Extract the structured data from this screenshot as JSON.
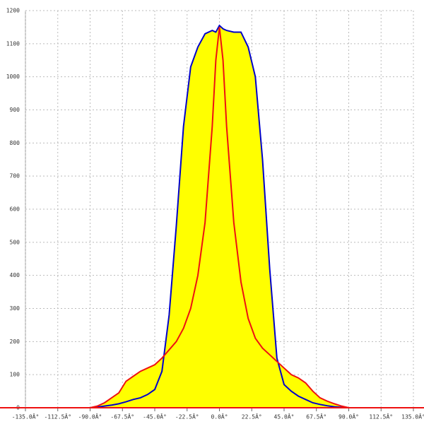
{
  "chart_data": {
    "type": "area-line",
    "x": [
      -90,
      -85,
      -80,
      -75,
      -70,
      -65,
      -60,
      -55,
      -50,
      -45,
      -40,
      -35,
      -30,
      -25,
      -20,
      -15,
      -10,
      -5,
      -2.5,
      0,
      2.5,
      5,
      10,
      15,
      20,
      25,
      30,
      35,
      40,
      45,
      50,
      55,
      60,
      65,
      70,
      75,
      80,
      85,
      90
    ],
    "series": [
      {
        "color": "#0000cc",
        "fill": "#ffff00",
        "values": [
          0,
          2,
          5,
          8,
          12,
          18,
          25,
          30,
          40,
          55,
          110,
          280,
          550,
          850,
          1030,
          1090,
          1130,
          1140,
          1135,
          1155,
          1145,
          1140,
          1135,
          1135,
          1090,
          1000,
          750,
          420,
          150,
          70,
          50,
          35,
          25,
          15,
          10,
          6,
          3,
          1,
          0
        ]
      },
      {
        "color": "#ee1111",
        "fill": "#ffff00",
        "values": [
          0,
          5,
          15,
          30,
          45,
          80,
          95,
          110,
          120,
          130,
          150,
          175,
          200,
          240,
          300,
          400,
          560,
          850,
          1050,
          1150,
          1050,
          850,
          560,
          380,
          270,
          210,
          180,
          160,
          140,
          120,
          100,
          90,
          75,
          50,
          30,
          20,
          12,
          5,
          0
        ]
      }
    ],
    "xlim": [
      -135,
      135
    ],
    "xticks": [
      {
        "value": -135,
        "label": "-135.0Â°"
      },
      {
        "value": -112.5,
        "label": "-112.5Â°"
      },
      {
        "value": -90,
        "label": "-90.0Â°"
      },
      {
        "value": -67.5,
        "label": "-67.5Â°"
      },
      {
        "value": -45,
        "label": "-45.0Â°"
      },
      {
        "value": -22.5,
        "label": "-22.5Â°"
      },
      {
        "value": 0,
        "label": "0.0Â°"
      },
      {
        "value": 22.5,
        "label": "22.5Â°"
      },
      {
        "value": 45,
        "label": "45.0Â°"
      },
      {
        "value": 67.5,
        "label": "67.5Â°"
      },
      {
        "value": 90,
        "label": "90.0Â°"
      },
      {
        "value": 112.5,
        "label": "112.5Â°"
      },
      {
        "value": 135,
        "label": "135.0Â°"
      }
    ],
    "ylim": [
      0,
      1200
    ],
    "yticks": [
      0,
      100,
      200,
      300,
      400,
      500,
      600,
      700,
      800,
      900,
      1000,
      1100,
      1200
    ],
    "grid": true
  }
}
